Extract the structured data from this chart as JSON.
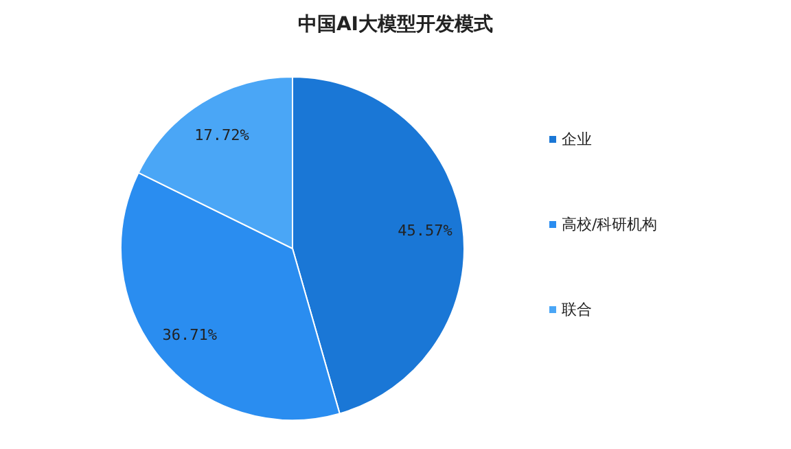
{
  "chart_data": {
    "type": "pie",
    "title": "中国AI大模型开发模式",
    "categories": [
      "企业",
      "高校/科研机构",
      "联合"
    ],
    "values": [
      45.57,
      36.71,
      17.72
    ],
    "colors": [
      "#1a77d6",
      "#2a8df0",
      "#4aa6f6"
    ],
    "value_labels": [
      "45.57%",
      "36.71%",
      "17.72%"
    ],
    "legend": "right"
  }
}
